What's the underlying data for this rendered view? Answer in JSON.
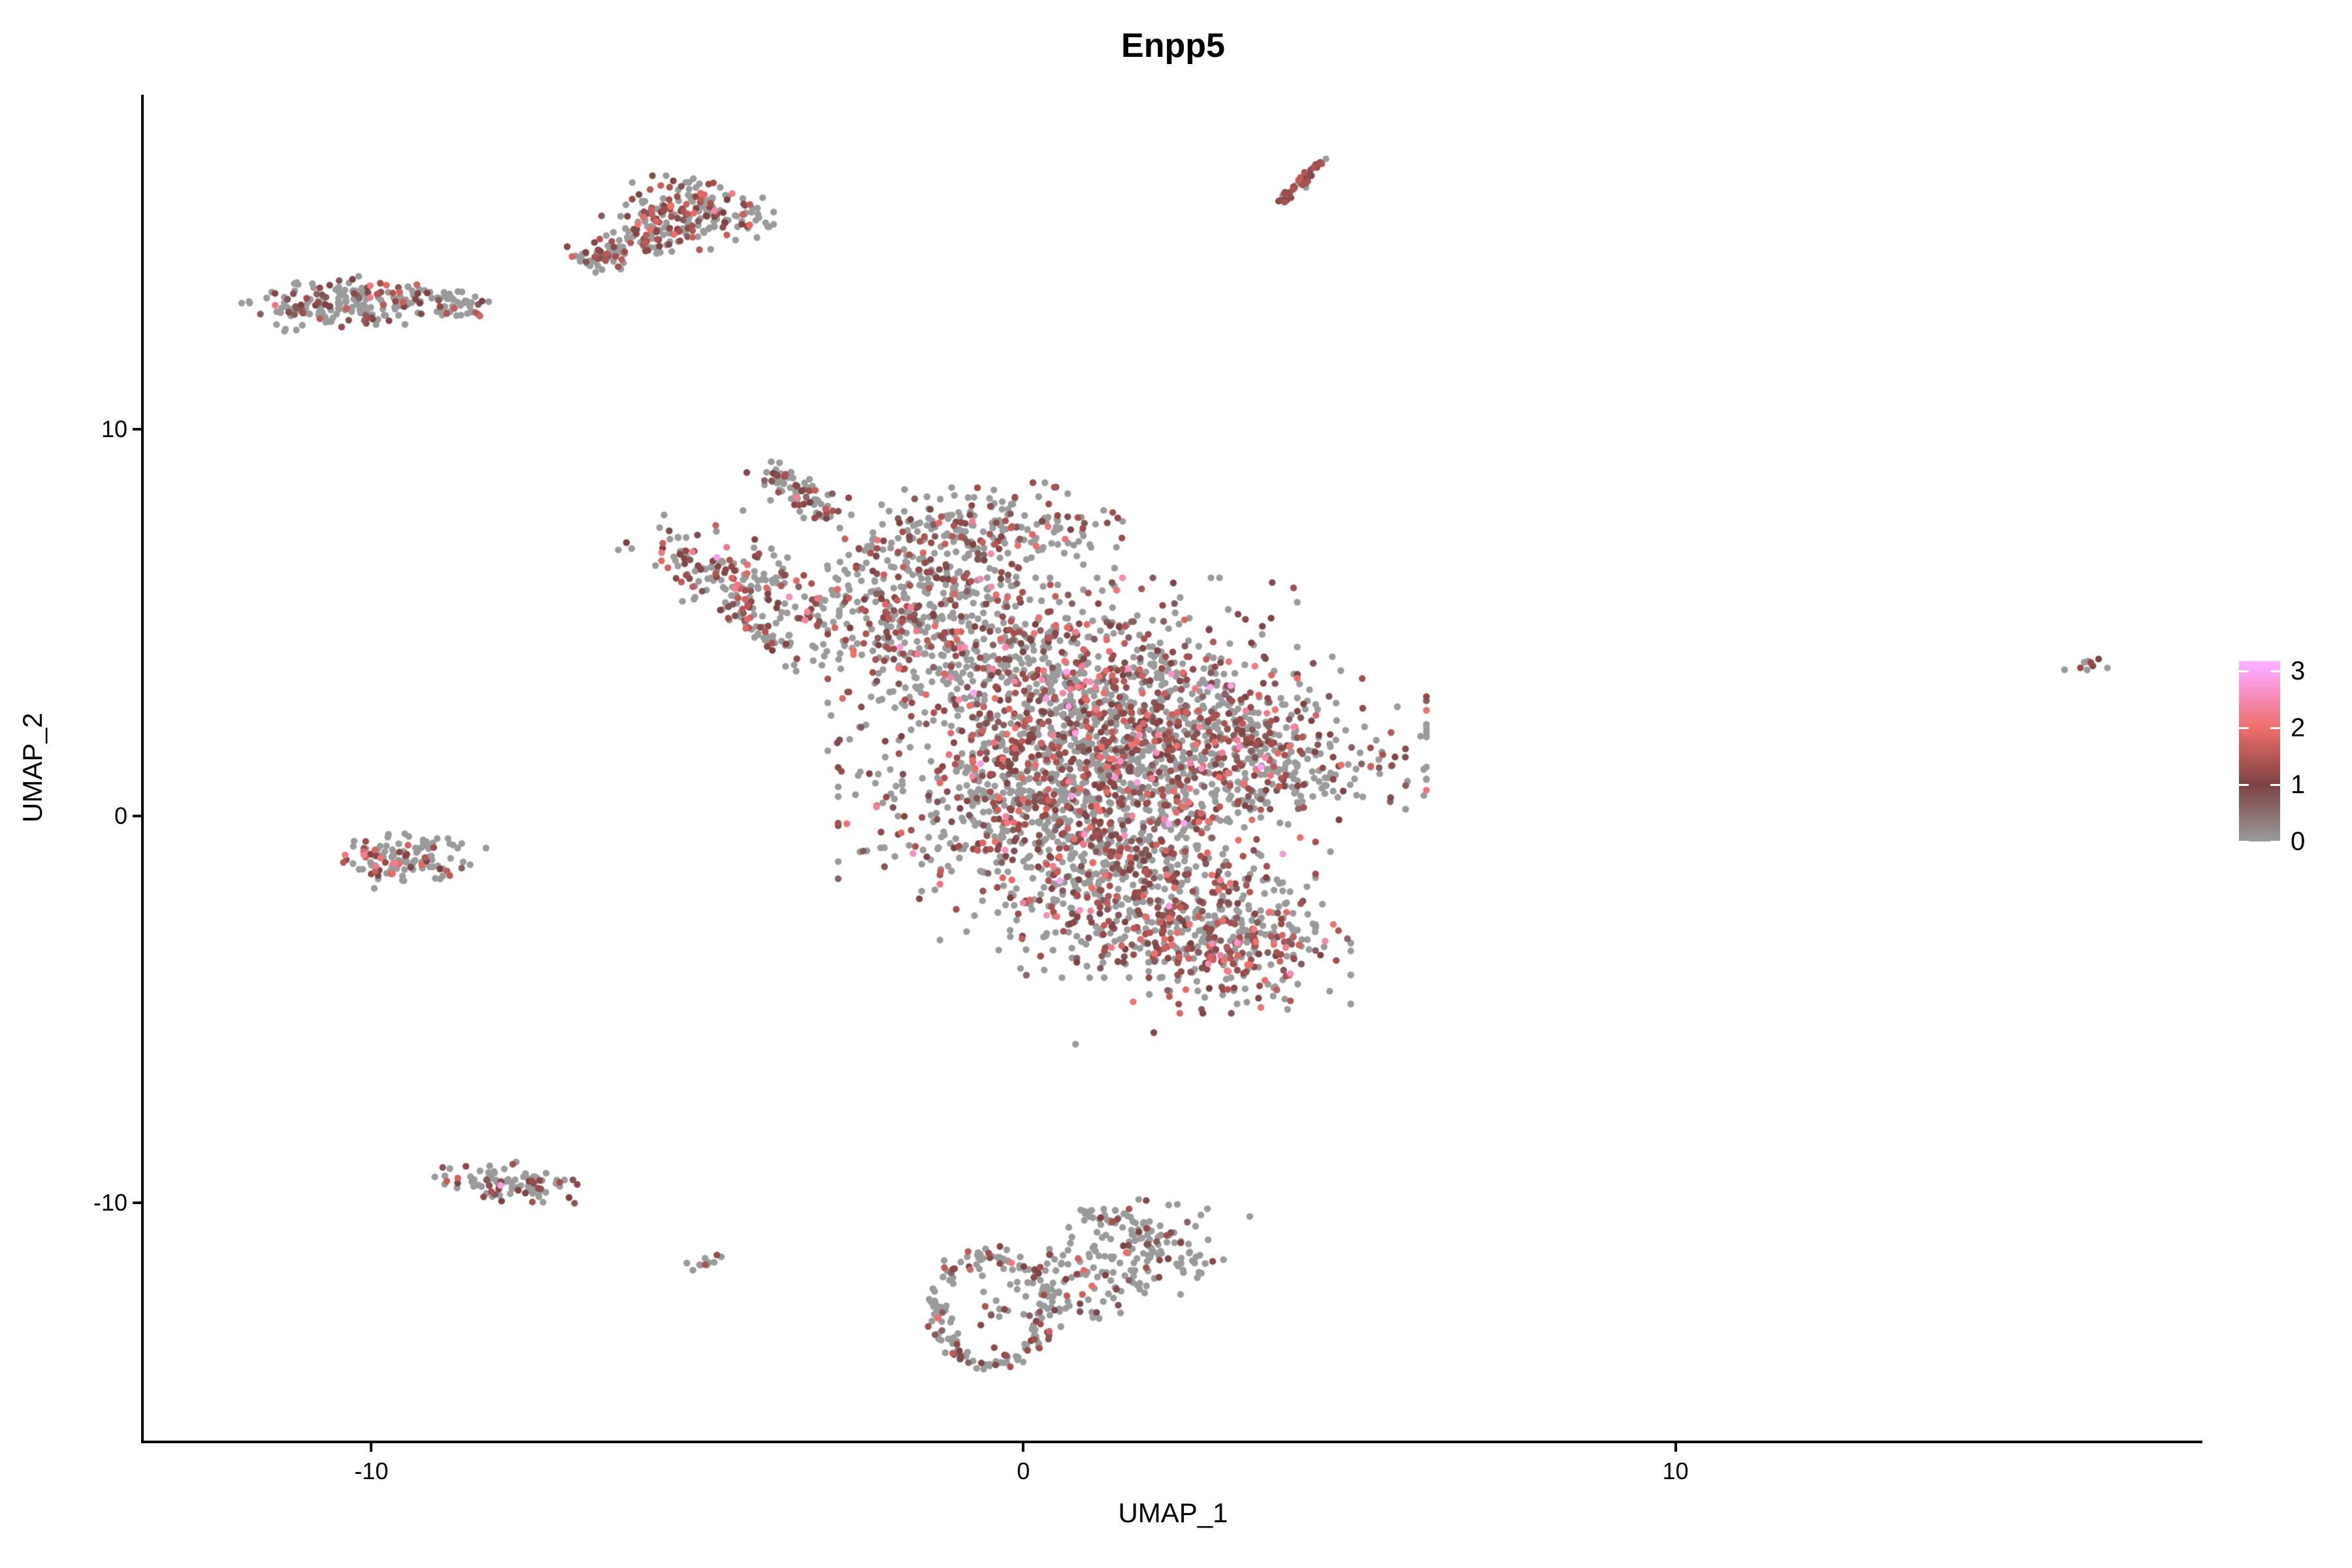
{
  "figure": {
    "background": "#FFFFFF"
  },
  "chart_data": {
    "type": "scatter",
    "title": "Enpp5",
    "xlabel": "UMAP_1",
    "ylabel": "UMAP_2",
    "xlim": [
      -13.49,
      18.08
    ],
    "ylim": [
      -16.15,
      18.65
    ],
    "x_ticks": [
      -10,
      0,
      10
    ],
    "y_ticks": [
      -10,
      0,
      10
    ],
    "grid": false,
    "legend_position": "right",
    "point_radius_px": 5.2,
    "seed": 42,
    "color_scale": {
      "values": [
        0,
        1,
        2,
        3
      ],
      "stops": [
        "#9B9B9B",
        "#7C4242",
        "#EE6E6A",
        "#FCA6F8"
      ],
      "top_color": "#FFB4FF",
      "max": 3.17,
      "ticks": [
        0,
        1,
        2,
        3
      ]
    },
    "clusters": [
      {
        "name": "top-streak",
        "shape": "line",
        "x1": 3.88,
        "y1": 15.8,
        "x2": 4.62,
        "y2": 16.95,
        "jx": 0.05,
        "jy": 0.07,
        "n": 48,
        "mix": [
          [
            0.3,
            0,
            0
          ],
          [
            0.5,
            0.8,
            1.4
          ],
          [
            0.2,
            1.1,
            1.7
          ]
        ]
      },
      {
        "name": "topleft-comma-blob",
        "shape": "gauss",
        "cx": -5.15,
        "cy": 15.55,
        "sx": 0.55,
        "sy": 0.42,
        "n": 200,
        "mix": [
          [
            0.62,
            0,
            0
          ],
          [
            0.24,
            0.7,
            1.4
          ],
          [
            0.11,
            1.3,
            2.1
          ],
          [
            0.03,
            1.9,
            2.5
          ]
        ]
      },
      {
        "name": "topleft-comma-tail",
        "shape": "line",
        "x1": -6.75,
        "y1": 14.25,
        "x2": -5.5,
        "y2": 15.1,
        "jx": 0.22,
        "jy": 0.18,
        "n": 90,
        "mix": [
          [
            0.68,
            0,
            0
          ],
          [
            0.22,
            0.7,
            1.4
          ],
          [
            0.1,
            1.3,
            2.0
          ]
        ]
      },
      {
        "name": "left-bar-dense",
        "shape": "gauss",
        "cx": -10.5,
        "cy": 13.25,
        "sx": 0.62,
        "sy": 0.3,
        "n": 170,
        "mix": [
          [
            0.7,
            0,
            0
          ],
          [
            0.22,
            0.6,
            1.3
          ],
          [
            0.07,
            1.2,
            1.9
          ],
          [
            0.01,
            1.8,
            2.3
          ]
        ]
      },
      {
        "name": "left-bar-tail",
        "shape": "line",
        "x1": -9.6,
        "y1": 13.45,
        "x2": -8.45,
        "y2": 13.15,
        "jx": 0.3,
        "jy": 0.18,
        "n": 70,
        "mix": [
          [
            0.72,
            0,
            0
          ],
          [
            0.21,
            0.6,
            1.3
          ],
          [
            0.07,
            1.2,
            1.9
          ]
        ]
      },
      {
        "name": "main-beak",
        "shape": "line",
        "x1": -3.85,
        "y1": 9.0,
        "x2": -3.05,
        "y2": 7.75,
        "jx": 0.18,
        "jy": 0.2,
        "n": 85,
        "mix": [
          [
            0.66,
            0,
            0
          ],
          [
            0.25,
            0.6,
            1.4
          ],
          [
            0.07,
            1.3,
            2.0
          ],
          [
            0.02,
            1.9,
            2.4
          ]
        ]
      },
      {
        "name": "main-ridge",
        "shape": "gauss",
        "cx": -0.6,
        "cy": 7.3,
        "sx": 1.0,
        "sy": 0.55,
        "n": 230,
        "mix": [
          [
            0.68,
            0,
            0
          ],
          [
            0.24,
            0.6,
            1.4
          ],
          [
            0.06,
            1.3,
            2.0
          ],
          [
            0.02,
            1.9,
            2.6
          ]
        ]
      },
      {
        "name": "main-wing",
        "shape": "line",
        "x1": -5.6,
        "y1": 6.9,
        "x2": -3.6,
        "y2": 5.6,
        "jx": 0.3,
        "jy": 0.45,
        "n": 150,
        "mix": [
          [
            0.55,
            0,
            0
          ],
          [
            0.28,
            0.7,
            1.5
          ],
          [
            0.14,
            1.4,
            2.2
          ],
          [
            0.03,
            2.0,
            2.6
          ]
        ]
      },
      {
        "name": "main-spur",
        "shape": "line",
        "x1": -4.45,
        "y1": 5.35,
        "x2": -3.55,
        "y2": 4.1,
        "jx": 0.12,
        "jy": 0.15,
        "n": 45,
        "mix": [
          [
            0.5,
            0,
            0
          ],
          [
            0.3,
            0.7,
            1.5
          ],
          [
            0.2,
            1.4,
            2.1
          ]
        ]
      },
      {
        "name": "main-nw",
        "shape": "gauss",
        "cx": -1.6,
        "cy": 5.3,
        "sx": 1.05,
        "sy": 0.95,
        "n": 420,
        "mix": [
          [
            0.66,
            0,
            0
          ],
          [
            0.25,
            0.6,
            1.4
          ],
          [
            0.07,
            1.3,
            2.0
          ],
          [
            0.02,
            1.9,
            2.6
          ]
        ]
      },
      {
        "name": "main-c1",
        "shape": "gauss",
        "cx": 0.6,
        "cy": 3.4,
        "sx": 1.5,
        "sy": 1.15,
        "n": 800,
        "mix": [
          [
            0.59,
            0,
            0
          ],
          [
            0.29,
            0.6,
            1.4
          ],
          [
            0.08,
            1.3,
            2.1
          ],
          [
            0.03,
            1.9,
            2.5
          ],
          [
            0.01,
            2.5,
            3.1
          ]
        ]
      },
      {
        "name": "main-e",
        "shape": "gauss",
        "cx": 2.7,
        "cy": 1.6,
        "sx": 1.45,
        "sy": 1.05,
        "n": 850,
        "mix": [
          [
            0.59,
            0,
            0
          ],
          [
            0.29,
            0.6,
            1.4
          ],
          [
            0.08,
            1.3,
            2.1
          ],
          [
            0.03,
            1.9,
            2.5
          ],
          [
            0.01,
            2.5,
            3.1
          ]
        ]
      },
      {
        "name": "main-c2",
        "shape": "gauss",
        "cx": 0.4,
        "cy": 0.3,
        "sx": 1.35,
        "sy": 1.05,
        "n": 650,
        "mix": [
          [
            0.59,
            0,
            0
          ],
          [
            0.29,
            0.6,
            1.4
          ],
          [
            0.08,
            1.3,
            2.1
          ],
          [
            0.03,
            1.9,
            2.5
          ],
          [
            0.01,
            2.5,
            3.1
          ]
        ]
      },
      {
        "name": "main-s",
        "shape": "gauss",
        "cx": 1.6,
        "cy": -1.9,
        "sx": 1.2,
        "sy": 0.95,
        "n": 520,
        "mix": [
          [
            0.59,
            0,
            0
          ],
          [
            0.29,
            0.6,
            1.4
          ],
          [
            0.08,
            1.3,
            2.1
          ],
          [
            0.03,
            1.9,
            2.5
          ],
          [
            0.01,
            2.5,
            3.1
          ]
        ]
      },
      {
        "name": "main-se",
        "shape": "gauss",
        "cx": 3.1,
        "cy": -3.3,
        "sx": 0.8,
        "sy": 0.75,
        "n": 330,
        "mix": [
          [
            0.55,
            0,
            0
          ],
          [
            0.31,
            0.6,
            1.4
          ],
          [
            0.1,
            1.3,
            2.1
          ],
          [
            0.03,
            1.9,
            2.5
          ],
          [
            0.01,
            2.5,
            3.0
          ]
        ]
      },
      {
        "name": "left-mid-red",
        "shape": "gauss",
        "cx": -9.85,
        "cy": -1.15,
        "sx": 0.28,
        "sy": 0.3,
        "n": 55,
        "mix": [
          [
            0.38,
            0,
            0
          ],
          [
            0.3,
            0.8,
            1.5
          ],
          [
            0.27,
            1.5,
            2.3
          ],
          [
            0.05,
            2.1,
            2.6
          ]
        ]
      },
      {
        "name": "left-mid-gray",
        "shape": "gauss",
        "cx": -9.1,
        "cy": -1.0,
        "sx": 0.38,
        "sy": 0.28,
        "n": 65,
        "mix": [
          [
            0.84,
            0,
            0
          ],
          [
            0.13,
            0.6,
            1.3
          ],
          [
            0.03,
            1.3,
            1.9
          ]
        ]
      },
      {
        "name": "bottom-left-band",
        "shape": "line",
        "x1": -8.55,
        "y1": -9.35,
        "x2": -7.15,
        "y2": -9.7,
        "jx": 0.22,
        "jy": 0.22,
        "n": 95,
        "mix": [
          [
            0.72,
            0,
            0
          ],
          [
            0.24,
            0.7,
            1.4
          ],
          [
            0.04,
            1.4,
            2.0
          ]
        ]
      },
      {
        "name": "tiny-below",
        "shape": "gauss",
        "cx": -4.85,
        "cy": -11.55,
        "sx": 0.13,
        "sy": 0.11,
        "n": 9,
        "mix": [
          [
            1,
            0,
            0
          ]
        ]
      },
      {
        "name": "bottom-donut-ring",
        "shape": "ring",
        "cx": -0.5,
        "cy": -12.8,
        "rx": 0.85,
        "ry": 1.4,
        "w": 0.12,
        "n": 160,
        "mix": [
          [
            0.78,
            0,
            0
          ],
          [
            0.18,
            0.6,
            1.4
          ],
          [
            0.035,
            1.3,
            2.1
          ],
          [
            0.005,
            2.1,
            2.5
          ]
        ]
      },
      {
        "name": "bottom-donut-right",
        "shape": "line",
        "x1": 0.3,
        "y1": -12.6,
        "x2": 2.5,
        "y2": -10.8,
        "jx": 0.45,
        "jy": 0.5,
        "n": 200,
        "mix": [
          [
            0.78,
            0,
            0
          ],
          [
            0.18,
            0.6,
            1.4
          ],
          [
            0.035,
            1.3,
            2.1
          ],
          [
            0.005,
            2.1,
            2.5
          ]
        ]
      },
      {
        "name": "bottom-donut-hook",
        "shape": "line",
        "x1": 1.0,
        "y1": -10.25,
        "x2": 1.7,
        "y2": -10.55,
        "jx": 0.15,
        "jy": 0.12,
        "n": 30,
        "mix": [
          [
            0.8,
            0,
            0
          ],
          [
            0.2,
            0.6,
            1.4
          ]
        ]
      },
      {
        "name": "bottom-donut-inner",
        "shape": "gauss",
        "cx": -0.5,
        "cy": -12.7,
        "sx": 0.3,
        "sy": 0.5,
        "n": 12,
        "mix": [
          [
            0.7,
            0,
            0
          ],
          [
            0.3,
            0.7,
            1.5
          ]
        ]
      },
      {
        "name": "far-right-tiny",
        "shape": "gauss",
        "cx": 16.35,
        "cy": 3.85,
        "sx": 0.16,
        "sy": 0.12,
        "n": 11,
        "mix": [
          [
            0.72,
            0,
            0
          ],
          [
            0.28,
            0.9,
            1.6
          ]
        ]
      }
    ],
    "extra_points": [
      [
        -8.2,
        13.3,
        0
      ],
      [
        -4.7,
        6.69,
        2.9
      ],
      [
        -4.55,
        6.95,
        2.2
      ],
      [
        -5.55,
        6.6,
        1.9
      ],
      [
        -4.3,
        7.9,
        0
      ],
      [
        -8.02,
        -9.55,
        2.85
      ],
      [
        -4.88,
        -11.6,
        1.4
      ],
      [
        -4.7,
        -11.35,
        1.2
      ],
      [
        0.8,
        -5.9,
        0
      ],
      [
        2.0,
        -5.6,
        0.9
      ],
      [
        4.05,
        -5.0,
        0
      ],
      [
        -2.95,
        2.6,
        0
      ],
      [
        -2.4,
        -0.9,
        0
      ]
    ]
  }
}
